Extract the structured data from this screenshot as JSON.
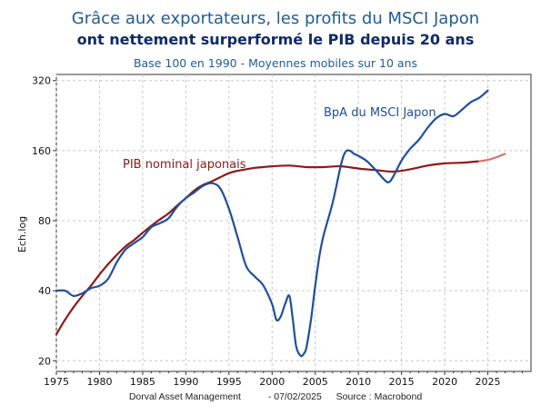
{
  "title_line1": "Grâce aux exportateurs, les profits du MSCI Japon",
  "title_line2": "ont nettement surperformé le PIB depuis 20 ans",
  "subtitle": "Base 100 en 1990 - Moyennes mobiles sur 10 ans",
  "footer": {
    "source_org": "Dorval Asset Management",
    "date": "- 07/02/2025",
    "source": "Source : Macrobond"
  },
  "colors": {
    "eps": "#1f4e9c",
    "gdp": "#8b1a1a",
    "gdp_forecast": "#d9706a",
    "grid": "#c8c8c8"
  },
  "chart_data": {
    "type": "line",
    "ylabel": "Ech.log",
    "xlabel": "",
    "yscale": "log",
    "ylim": [
      18,
      340
    ],
    "xlim": [
      1975,
      2030
    ],
    "yticks": [
      20,
      40,
      80,
      160,
      320
    ],
    "xticks": [
      1975,
      1980,
      1985,
      1990,
      1995,
      2000,
      2005,
      2010,
      2015,
      2020,
      2025
    ],
    "grid": true,
    "series": [
      {
        "name": "BpA du MSCI Japon",
        "color": "#1f4e9c",
        "x": [
          1975,
          1976,
          1977,
          1978,
          1979,
          1980,
          1981,
          1982,
          1983,
          1984,
          1985,
          1986,
          1987,
          1988,
          1989,
          1990,
          1991,
          1992,
          1993,
          1994,
          1995,
          1996,
          1997,
          1998,
          1999,
          2000,
          2000.5,
          2001,
          2001.5,
          2002,
          2002.4,
          2002.8,
          2003.3,
          2003.7,
          2004,
          2004.5,
          2005,
          2005.5,
          2006,
          2007,
          2008,
          2008.5,
          2009,
          2009.5,
          2010,
          2011,
          2012,
          2013,
          2013.5,
          2014,
          2015,
          2016,
          2017,
          2018,
          2019,
          2020,
          2021,
          2022,
          2023,
          2024,
          2025
        ],
        "y": [
          40,
          40,
          38,
          39,
          41,
          42,
          45,
          53,
          60,
          64,
          68,
          75,
          78,
          82,
          92,
          100,
          106,
          113,
          116,
          110,
          90,
          68,
          51,
          46,
          42,
          35,
          30,
          31,
          35,
          38,
          30,
          23,
          21,
          21.5,
          23,
          30,
          42,
          57,
          70,
          95,
          140,
          158,
          160,
          155,
          152,
          144,
          132,
          120,
          117,
          123,
          145,
          163,
          178,
          200,
          220,
          230,
          225,
          240,
          258,
          270,
          290
        ]
      },
      {
        "name": "PIB nominal japonais",
        "color": "#8b1a1a",
        "x": [
          1975,
          1976,
          1977,
          1978,
          1979,
          1980,
          1981,
          1982,
          1983,
          1984,
          1985,
          1986,
          1987,
          1988,
          1989,
          1990,
          1991,
          1992,
          1993,
          1994,
          1995,
          1996,
          1997,
          1998,
          1999,
          2000,
          2002,
          2004,
          2006,
          2008,
          2010,
          2012,
          2014,
          2016,
          2018,
          2020,
          2022,
          2024
        ],
        "y": [
          26,
          30,
          34,
          38,
          42,
          47,
          52,
          57,
          62,
          66,
          71,
          76,
          81,
          86,
          93,
          100,
          108,
          114,
          118,
          123,
          128,
          131,
          133,
          135,
          136,
          137,
          138,
          136,
          136,
          137,
          134,
          132,
          130,
          133,
          138,
          141,
          142,
          144
        ]
      },
      {
        "name": "",
        "color": "#d9706a",
        "x": [
          2024,
          2025,
          2026,
          2027
        ],
        "y": [
          144,
          146,
          150,
          155
        ]
      }
    ],
    "annotations": [
      {
        "text": "BpA du MSCI Japon",
        "color": "#1f4e9c"
      },
      {
        "text": "PIB nominal japonais",
        "color": "#8b1a1a"
      }
    ]
  }
}
